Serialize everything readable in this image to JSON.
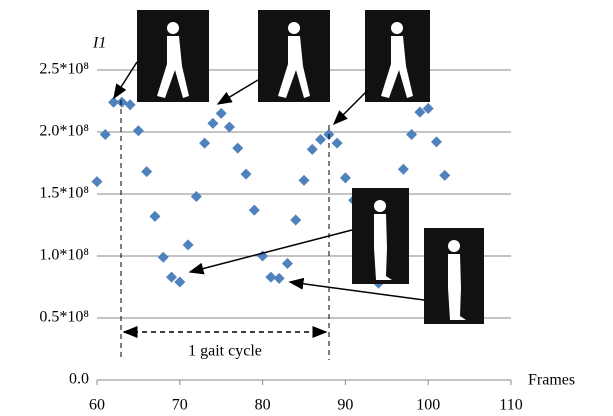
{
  "chart_data": {
    "type": "scatter",
    "y_label": "I1",
    "x_label": "Frames",
    "annotation": "1 gait cycle",
    "color": "#4f81bd",
    "grid": true,
    "xlim": [
      60,
      110
    ],
    "xticks": [
      60,
      70,
      80,
      90,
      100,
      110
    ],
    "ylim": [
      0,
      250000000
    ],
    "yticks": [
      {
        "value": 0,
        "label": "0.0"
      },
      {
        "value": 50000000,
        "label": "0.5*10⁸"
      },
      {
        "value": 100000000,
        "label": "1.0*10⁸"
      },
      {
        "value": 150000000,
        "label": "1.5*10⁸"
      },
      {
        "value": 200000000,
        "label": "2.0*10⁸"
      },
      {
        "value": 250000000,
        "label": "2.5*10⁸"
      }
    ],
    "x": [
      60,
      61,
      62,
      63,
      64,
      65,
      66,
      67,
      68,
      69,
      70,
      71,
      72,
      73,
      74,
      75,
      76,
      77,
      78,
      79,
      80,
      81,
      82,
      83,
      84,
      85,
      86,
      87,
      88,
      89,
      90,
      91,
      94,
      97,
      98,
      99,
      100,
      101,
      102
    ],
    "values": [
      160000000,
      198000000,
      224000000,
      224000000,
      222000000,
      201000000,
      168000000,
      132000000,
      99000000,
      83000000,
      79000000,
      109000000,
      148000000,
      191000000,
      207000000,
      215000000,
      204000000,
      187000000,
      166000000,
      137000000,
      100000000,
      83000000,
      82000000,
      94000000,
      129000000,
      161000000,
      186000000,
      194000000,
      198000000,
      191000000,
      163000000,
      145000000,
      78000000,
      170000000,
      198000000,
      216000000,
      219000000,
      192000000,
      165000000
    ]
  }
}
